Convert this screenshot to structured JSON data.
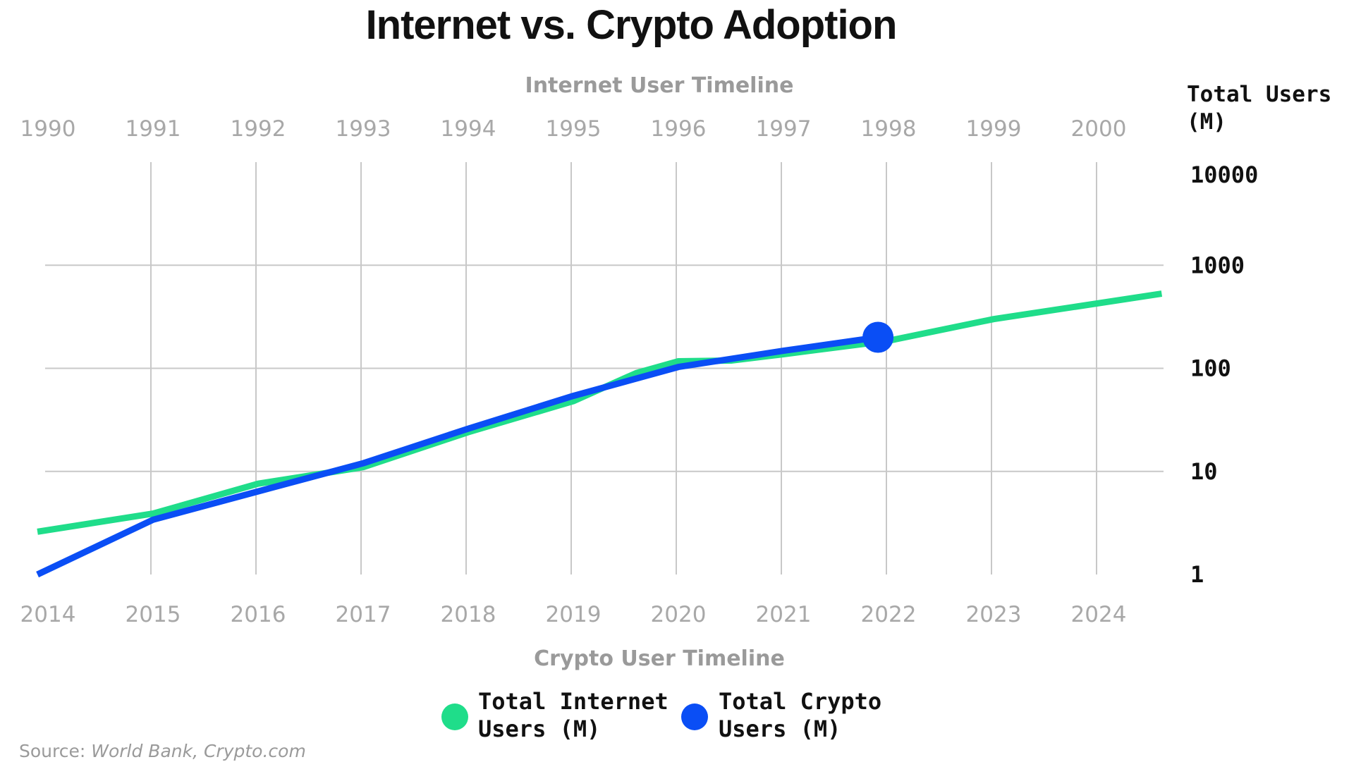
{
  "chart_data": {
    "type": "line",
    "title": "Internet vs. Crypto Adoption",
    "top_axis": {
      "label": "Internet User Timeline",
      "ticks": [
        "1990",
        "1991",
        "1992",
        "1993",
        "1994",
        "1995",
        "1996",
        "1997",
        "1998",
        "1999",
        "2000"
      ]
    },
    "bottom_axis": {
      "label": "Crypto User Timeline",
      "ticks": [
        "2014",
        "2015",
        "2016",
        "2017",
        "2018",
        "2019",
        "2020",
        "2021",
        "2022",
        "2023",
        "2024"
      ]
    },
    "y_axis": {
      "label_lines": [
        "Total Users",
        "(M)"
      ],
      "scale": "log",
      "ylim": [
        1,
        10000
      ],
      "ticks": [
        {
          "value": 1,
          "label": "1"
        },
        {
          "value": 10,
          "label": "10"
        },
        {
          "value": 100,
          "label": "100"
        },
        {
          "value": 1000,
          "label": "1000"
        },
        {
          "value": 10000,
          "label": "10000"
        }
      ]
    },
    "xlim": [
      -0.1,
      10.6
    ],
    "series": [
      {
        "name_lines": [
          "Total Internet",
          "Users (M)"
        ],
        "color": "#1fdd8a",
        "axis": "top",
        "x": [
          -0.1,
          1,
          2,
          3,
          4,
          5,
          5.6,
          6,
          6.5,
          7,
          8,
          9,
          10.6
        ],
        "y": [
          2.6,
          3.9,
          7.6,
          11,
          24,
          48,
          90,
          117,
          119,
          137,
          185,
          300,
          530
        ]
      },
      {
        "name_lines": [
          "Total Crypto",
          "Users (M)"
        ],
        "color": "#0a4ef5",
        "axis": "bottom",
        "x": [
          -0.1,
          1,
          2,
          3,
          4,
          5,
          6,
          7,
          7.9
        ],
        "y": [
          1,
          3.4,
          6.4,
          12,
          26,
          54,
          103,
          148,
          200
        ],
        "end_marker": true
      }
    ],
    "grid": true,
    "legend_position": "bottom-center"
  },
  "source": {
    "prefix": "Source: ",
    "text": "World Bank, Crypto.com"
  }
}
